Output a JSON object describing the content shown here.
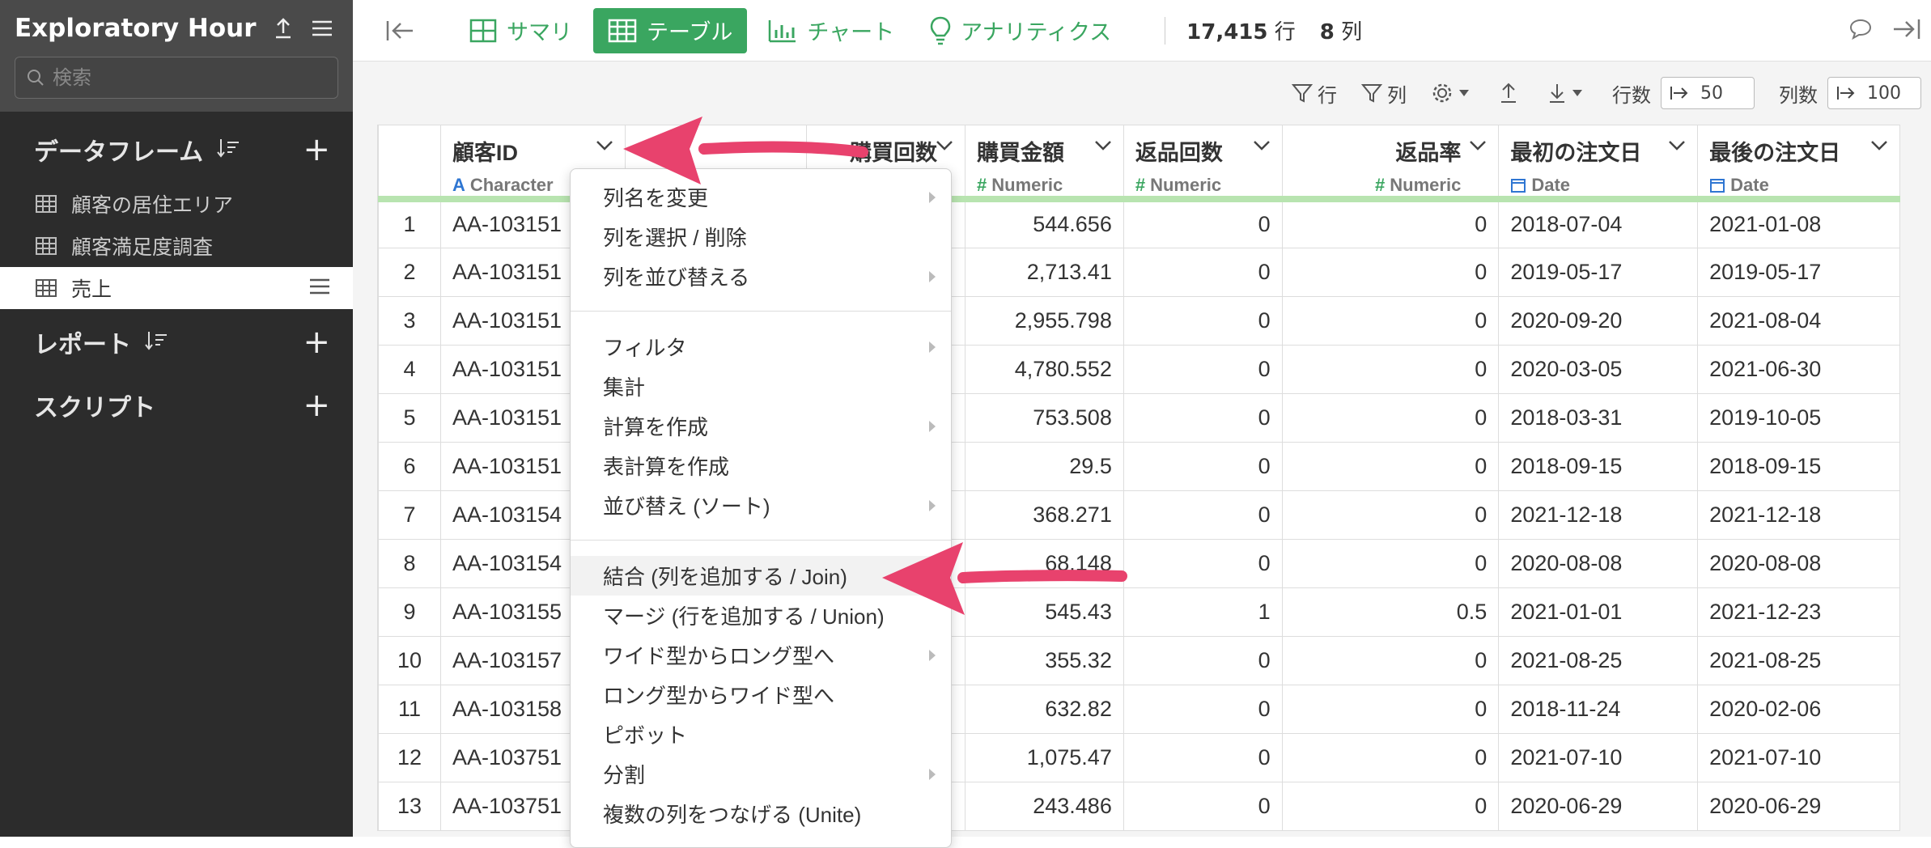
{
  "sidebar": {
    "app_title": "Exploratory Hour ...",
    "search_placeholder": "検索",
    "sections": {
      "dataframes": "データフレーム",
      "reports": "レポート",
      "scripts": "スクリプト"
    },
    "dataframe_items": [
      "顧客の居住エリア",
      "顧客満足度調査",
      "売上"
    ]
  },
  "toolbar": {
    "summary": "サマリ",
    "table": "テーブル",
    "chart": "チャート",
    "analytics": "アナリティクス",
    "rows_count": "17,415",
    "rows_unit": "行",
    "cols_count": "8",
    "cols_unit": "列"
  },
  "subbar": {
    "row_filter": "行",
    "col_filter": "列",
    "rows_label": "行数",
    "rows_value": "50",
    "cols_label": "列数",
    "cols_value": "100"
  },
  "columns": [
    {
      "name": "顧客ID",
      "type": "Character"
    },
    {
      "name": "",
      "type": ""
    },
    {
      "name": "購買回数",
      "type": ""
    },
    {
      "name": "購買金額",
      "type": "Numeric"
    },
    {
      "name": "返品回数",
      "type": "Numeric"
    },
    {
      "name": "返品率",
      "type": "Numeric"
    },
    {
      "name": "最初の注文日",
      "type": "Date"
    },
    {
      "name": "最後の注文日",
      "type": "Date"
    }
  ],
  "rows": [
    {
      "idx": "1",
      "id": "AA-103151",
      "amount": "544.656",
      "returns": "0",
      "rate": "0",
      "first": "2018-07-04",
      "last": "2021-01-08"
    },
    {
      "idx": "2",
      "id": "AA-103151",
      "amount": "2,713.41",
      "returns": "0",
      "rate": "0",
      "first": "2019-05-17",
      "last": "2019-05-17"
    },
    {
      "idx": "3",
      "id": "AA-103151",
      "amount": "2,955.798",
      "returns": "0",
      "rate": "0",
      "first": "2020-09-20",
      "last": "2021-08-04"
    },
    {
      "idx": "4",
      "id": "AA-103151",
      "amount": "4,780.552",
      "returns": "0",
      "rate": "0",
      "first": "2020-03-05",
      "last": "2021-06-30"
    },
    {
      "idx": "5",
      "id": "AA-103151",
      "amount": "753.508",
      "returns": "0",
      "rate": "0",
      "first": "2018-03-31",
      "last": "2019-10-05"
    },
    {
      "idx": "6",
      "id": "AA-103151",
      "amount": "29.5",
      "returns": "0",
      "rate": "0",
      "first": "2018-09-15",
      "last": "2018-09-15"
    },
    {
      "idx": "7",
      "id": "AA-103154",
      "amount": "368.271",
      "returns": "0",
      "rate": "0",
      "first": "2021-12-18",
      "last": "2021-12-18"
    },
    {
      "idx": "8",
      "id": "AA-103154",
      "amount": "68.148",
      "returns": "0",
      "rate": "0",
      "first": "2020-08-08",
      "last": "2020-08-08"
    },
    {
      "idx": "9",
      "id": "AA-103155",
      "amount": "545.43",
      "returns": "1",
      "rate": "0.5",
      "first": "2021-01-01",
      "last": "2021-12-23"
    },
    {
      "idx": "10",
      "id": "AA-103157",
      "amount": "355.32",
      "returns": "0",
      "rate": "0",
      "first": "2021-08-25",
      "last": "2021-08-25"
    },
    {
      "idx": "11",
      "id": "AA-103158",
      "amount": "632.82",
      "returns": "0",
      "rate": "0",
      "first": "2018-11-24",
      "last": "2020-02-06"
    },
    {
      "idx": "12",
      "id": "AA-103751",
      "amount": "1,075.47",
      "returns": "0",
      "rate": "0",
      "first": "2021-07-10",
      "last": "2021-07-10"
    },
    {
      "idx": "13",
      "id": "AA-103751",
      "amount": "243.486",
      "returns": "0",
      "rate": "0",
      "first": "2020-06-29",
      "last": "2020-06-29"
    }
  ],
  "context_menu": {
    "items": [
      {
        "label": "列名を変更",
        "sub": true
      },
      {
        "label": "列を選択 / 削除",
        "sub": false
      },
      {
        "label": "列を並び替える",
        "sub": true
      },
      {
        "divider": true
      },
      {
        "label": "フィルタ",
        "sub": true
      },
      {
        "label": "集計",
        "sub": false
      },
      {
        "label": "計算を作成",
        "sub": true
      },
      {
        "label": "表計算を作成",
        "sub": false
      },
      {
        "label": "並び替え (ソート)",
        "sub": true
      },
      {
        "divider": true
      },
      {
        "label": "結合 (列を追加する / Join)",
        "sub": false,
        "highlight": true
      },
      {
        "label": "マージ (行を追加する / Union)",
        "sub": false
      },
      {
        "label": "ワイド型からロング型へ",
        "sub": true
      },
      {
        "label": "ロング型からワイド型へ",
        "sub": false
      },
      {
        "label": "ピボット",
        "sub": false
      },
      {
        "label": "分割",
        "sub": true
      },
      {
        "label": "複数の列をつなげる (Unite)",
        "sub": false
      }
    ]
  },
  "colors": {
    "accent": "#3aa660",
    "annotation_arrow": "#e8426d",
    "sidebar_bg": "#2c2c2c"
  }
}
